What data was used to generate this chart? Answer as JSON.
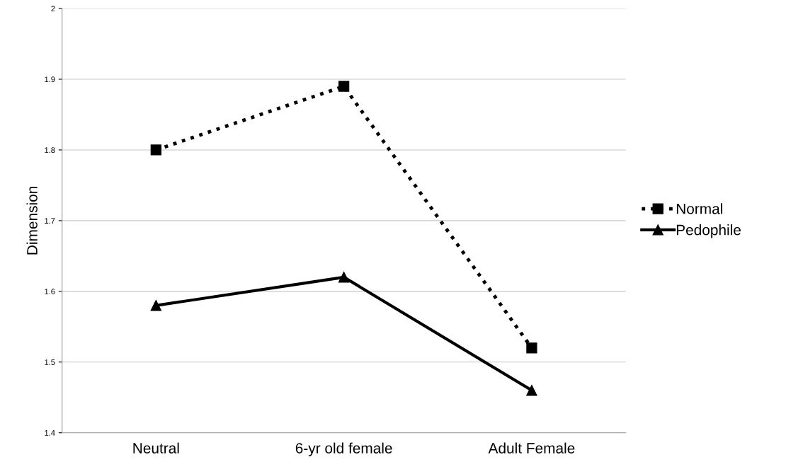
{
  "chart_data": {
    "type": "line",
    "ylabel": "Dimension",
    "categories": [
      "Neutral",
      "6-yr old female",
      "Adult Female"
    ],
    "series": [
      {
        "name": "Normal",
        "color": "#000000",
        "values": [
          1.8,
          1.89,
          1.52
        ],
        "marker": "square",
        "line_style": "dotted"
      },
      {
        "name": "Pedophile",
        "color": "#000000",
        "values": [
          1.58,
          1.62,
          1.46
        ],
        "marker": "triangle",
        "line_style": "solid"
      }
    ],
    "ylim": [
      1.4,
      2
    ],
    "yticks": [
      1.4,
      1.5,
      1.6,
      1.7,
      1.8,
      1.9,
      2
    ],
    "grid": "y",
    "legend": "right"
  }
}
